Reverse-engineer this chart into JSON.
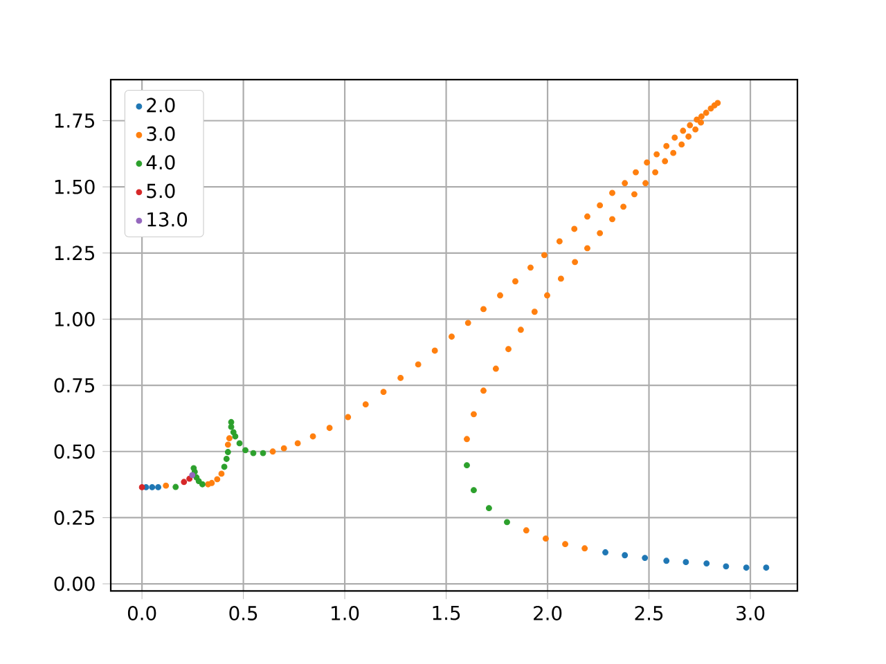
{
  "chart_data": {
    "type": "scatter",
    "marker": "circle",
    "grid": true,
    "legend": "top left",
    "xlim": [
      -0.154,
      3.232
    ],
    "ylim": [
      -0.027,
      1.905
    ],
    "xticks": [
      {
        "value": 0,
        "label": "0.0"
      },
      {
        "value": 0.5,
        "label": "0.5"
      },
      {
        "value": 1,
        "label": "1.0"
      },
      {
        "value": 1.5,
        "label": "1.5"
      },
      {
        "value": 2,
        "label": "2.0"
      },
      {
        "value": 2.5,
        "label": "2.5"
      },
      {
        "value": 3,
        "label": "3.0"
      }
    ],
    "yticks": [
      {
        "value": 0,
        "label": "0.00"
      },
      {
        "value": 0.25,
        "label": "0.25"
      },
      {
        "value": 0.5,
        "label": "0.50"
      },
      {
        "value": 0.75,
        "label": "0.75"
      },
      {
        "value": 1,
        "label": "1.00"
      },
      {
        "value": 1.25,
        "label": "1.25"
      },
      {
        "value": 1.5,
        "label": "1.50"
      },
      {
        "value": 1.75,
        "label": "1.75"
      }
    ],
    "series": [
      {
        "name": "2.0",
        "color": "#1f77b4",
        "x": [
          0.02,
          0.05,
          0.08,
          2.285,
          2.381,
          2.48,
          2.586,
          2.682,
          2.784,
          2.88,
          2.98,
          3.078
        ],
        "values": [
          0.365,
          0.365,
          0.365,
          0.119,
          0.108,
          0.098,
          0.087,
          0.082,
          0.077,
          0.066,
          0.061,
          0.061
        ]
      },
      {
        "name": "3.0",
        "color": "#ff7f0e",
        "x": [
          0.118,
          0.326,
          0.344,
          0.371,
          0.392,
          0.424,
          0.431,
          0.645,
          0.7,
          0.768,
          0.843,
          0.925,
          1.016,
          1.103,
          1.191,
          1.275,
          1.362,
          1.444,
          1.527,
          1.608,
          1.684,
          1.766,
          1.841,
          1.916,
          1.984,
          2.059,
          2.132,
          2.196,
          2.258,
          2.319,
          2.381,
          2.435,
          2.49,
          2.538,
          2.586,
          2.627,
          2.668,
          2.702,
          2.736,
          2.759,
          2.782,
          2.805,
          2.823,
          2.839,
          2.756,
          2.729,
          2.695,
          2.661,
          2.62,
          2.579,
          2.531,
          2.483,
          2.428,
          2.374,
          2.319,
          2.258,
          2.196,
          2.135,
          2.066,
          1.998,
          1.936,
          1.868,
          1.807,
          1.745,
          1.684,
          1.636,
          1.602,
          1.895,
          1.991,
          2.087,
          2.183
        ],
        "values": [
          0.371,
          0.376,
          0.381,
          0.395,
          0.416,
          0.526,
          0.55,
          0.5,
          0.512,
          0.531,
          0.557,
          0.589,
          0.63,
          0.678,
          0.725,
          0.778,
          0.829,
          0.881,
          0.934,
          0.986,
          1.038,
          1.09,
          1.143,
          1.195,
          1.242,
          1.294,
          1.341,
          1.388,
          1.43,
          1.477,
          1.514,
          1.555,
          1.592,
          1.623,
          1.654,
          1.686,
          1.712,
          1.733,
          1.754,
          1.766,
          1.78,
          1.796,
          1.808,
          1.817,
          1.743,
          1.717,
          1.69,
          1.66,
          1.628,
          1.597,
          1.555,
          1.514,
          1.472,
          1.425,
          1.378,
          1.325,
          1.268,
          1.216,
          1.153,
          1.09,
          1.028,
          0.96,
          0.887,
          0.813,
          0.73,
          0.641,
          0.547,
          0.202,
          0.171,
          0.15,
          0.134
        ]
      },
      {
        "name": "4.0",
        "color": "#2ca02c",
        "x": [
          0.166,
          0.255,
          0.26,
          0.269,
          0.28,
          0.298,
          0.406,
          0.417,
          0.424,
          0.44,
          0.44,
          0.451,
          0.46,
          0.481,
          0.51,
          0.549,
          0.597,
          1.602,
          1.636,
          1.711,
          1.8
        ],
        "values": [
          0.366,
          0.437,
          0.423,
          0.402,
          0.388,
          0.376,
          0.442,
          0.472,
          0.498,
          0.611,
          0.593,
          0.573,
          0.557,
          0.531,
          0.505,
          0.494,
          0.494,
          0.448,
          0.354,
          0.286,
          0.233
        ]
      },
      {
        "name": "5.0",
        "color": "#d62728",
        "x": [
          0.0,
          0.207,
          0.234
        ],
        "values": [
          0.365,
          0.385,
          0.397
        ]
      },
      {
        "name": "13.0",
        "color": "#9467bd",
        "x": [
          0.248
        ],
        "values": [
          0.411
        ]
      }
    ]
  }
}
